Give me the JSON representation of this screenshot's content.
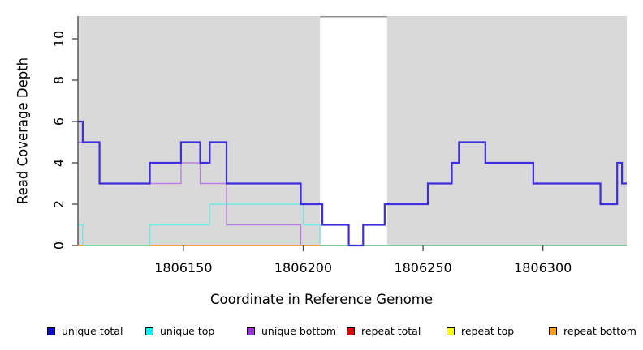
{
  "chart_data": {
    "type": "line",
    "subtype": "step-coverage",
    "title": "",
    "xlabel": "Coordinate in Reference Genome",
    "ylabel": "Read Coverage Depth",
    "x_domain": [
      1806106,
      1806335
    ],
    "y_domain": [
      0,
      11.1
    ],
    "x_ticks": [
      1806150,
      1806200,
      1806250,
      1806300
    ],
    "y_ticks": [
      0,
      2,
      4,
      6,
      8,
      10
    ],
    "grid": "off",
    "plot_bg_color": "#d9d9d9",
    "axis_color": "#454545",
    "tick_label_color": "#000000",
    "gap_band": {
      "x_from": 1806207,
      "x_to": 1806235,
      "fill": "#ffffff",
      "top_line_color": "#8f8f8f"
    },
    "baseline": {
      "name": "zero-baseline",
      "color": "#76c98a",
      "y": 0,
      "line_width": 1.5
    },
    "series": [
      {
        "name": "unique top",
        "color": "#72e8e8",
        "line_width": 1.4,
        "points": [
          [
            1806106,
            1
          ],
          [
            1806108,
            0
          ],
          [
            1806136,
            1
          ],
          [
            1806161,
            2
          ],
          [
            1806200,
            1
          ],
          [
            1806207,
            0
          ],
          [
            1806335,
            0
          ]
        ]
      },
      {
        "name": "unique bottom",
        "color": "#bd7fdd",
        "line_width": 1.4,
        "points": [
          [
            1806106,
            5
          ],
          [
            1806115,
            3
          ],
          [
            1806149,
            4
          ],
          [
            1806157,
            3
          ],
          [
            1806168,
            1
          ],
          [
            1806199,
            0
          ],
          [
            1806335,
            0
          ]
        ]
      },
      {
        "name": "repeat bottom",
        "color": "#ff9d1c",
        "line_width": 1.8,
        "segments_at_zero": [
          [
            1806106,
            1806108
          ],
          [
            1806136,
            1806207
          ]
        ]
      },
      {
        "name": "unique total",
        "color": "#3e2edd",
        "line_width": 2.2,
        "points": [
          [
            1806106,
            6
          ],
          [
            1806108,
            5
          ],
          [
            1806115,
            3
          ],
          [
            1806136,
            4
          ],
          [
            1806149,
            5
          ],
          [
            1806157,
            4
          ],
          [
            1806161,
            5
          ],
          [
            1806168,
            3
          ],
          [
            1806199,
            2
          ],
          [
            1806208,
            1
          ],
          [
            1806219,
            0
          ],
          [
            1806225,
            1
          ],
          [
            1806234,
            2
          ],
          [
            1806252,
            3
          ],
          [
            1806262,
            4
          ],
          [
            1806265,
            5
          ],
          [
            1806276,
            4
          ],
          [
            1806296,
            3
          ],
          [
            1806324,
            2
          ],
          [
            1806331,
            4
          ],
          [
            1806333,
            3
          ],
          [
            1806335,
            3
          ]
        ]
      }
    ],
    "legend": [
      {
        "label": "unique total",
        "color": "#0a0acc"
      },
      {
        "label": "unique top",
        "color": "#00f5f5"
      },
      {
        "label": "unique bottom",
        "color": "#a02fe0"
      },
      {
        "label": "repeat total",
        "color": "#e00505"
      },
      {
        "label": "repeat top",
        "color": "#fdfd05"
      },
      {
        "label": "repeat bottom",
        "color": "#ffa013"
      }
    ],
    "legend_position": "bottom"
  }
}
